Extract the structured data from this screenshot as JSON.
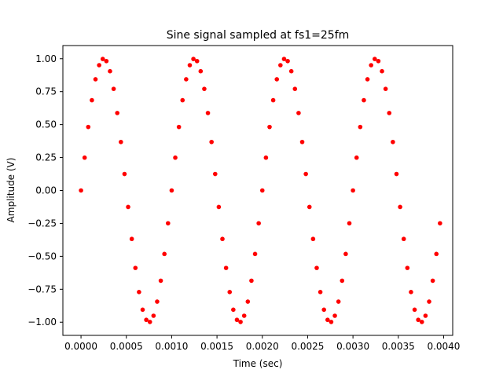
{
  "chart_data": {
    "type": "scatter",
    "title": "Sine signal sampled at fs1=25fm",
    "xlabel": "Time (sec)",
    "ylabel": "Amplitude (V)",
    "xlim": [
      -0.0002,
      0.0041
    ],
    "ylim": [
      -1.1,
      1.1
    ],
    "xticks": [
      0,
      0.0005,
      0.001,
      0.0015,
      0.002,
      0.0025,
      0.003,
      0.0035,
      0.004
    ],
    "xtick_labels": [
      "0.0000",
      "0.0005",
      "0.0010",
      "0.0015",
      "0.0020",
      "0.0025",
      "0.0030",
      "0.0035",
      "0.0040"
    ],
    "yticks": [
      -1,
      -0.75,
      -0.5,
      -0.25,
      0,
      0.25,
      0.5,
      0.75,
      1
    ],
    "ytick_labels": [
      "−1.00",
      "−0.75",
      "−0.50",
      "−0.25",
      "0.00",
      "0.25",
      "0.50",
      "0.75",
      "1.00"
    ],
    "grid": false,
    "marker_color": "#ff0000",
    "series": [
      {
        "x": [
          0,
          4e-05,
          8e-05,
          0.00012,
          0.00016,
          0.0002,
          0.00024,
          0.00028,
          0.00032,
          0.00036,
          0.0004,
          0.00044,
          0.00048,
          0.00052,
          0.00056,
          0.0006,
          0.00064,
          0.00068,
          0.00072,
          0.00076,
          0.0008,
          0.00084,
          0.00088,
          0.00092,
          0.00096,
          0.001,
          0.00104,
          0.00108,
          0.00112,
          0.00116,
          0.0012,
          0.00124,
          0.00128,
          0.00132,
          0.00136,
          0.0014,
          0.00144,
          0.00148,
          0.00152,
          0.00156,
          0.0016,
          0.00164,
          0.00168,
          0.00172,
          0.00176,
          0.0018,
          0.00184,
          0.00188,
          0.00192,
          0.00196,
          0.002,
          0.00204,
          0.00208,
          0.00212,
          0.00216,
          0.0022,
          0.00224,
          0.00228,
          0.00232,
          0.00236,
          0.0024,
          0.00244,
          0.00248,
          0.00252,
          0.00256,
          0.0026,
          0.00264,
          0.00268,
          0.00272,
          0.00276,
          0.0028,
          0.00284,
          0.00288,
          0.00292,
          0.00296,
          0.003,
          0.00304,
          0.00308,
          0.00312,
          0.00316,
          0.0032,
          0.00324,
          0.00328,
          0.00332,
          0.00336,
          0.0034,
          0.00344,
          0.00348,
          0.00352,
          0.00356,
          0.0036,
          0.00364,
          0.00368,
          0.00372,
          0.00376,
          0.0038,
          0.00384,
          0.00388,
          0.00392,
          0.00396
        ],
        "y": [
          0,
          0.249,
          0.482,
          0.685,
          0.844,
          0.951,
          0.998,
          0.982,
          0.905,
          0.771,
          0.588,
          0.368,
          0.125,
          -0.125,
          -0.368,
          -0.588,
          -0.771,
          -0.905,
          -0.982,
          -0.998,
          -0.951,
          -0.844,
          -0.685,
          -0.482,
          -0.249,
          0,
          0.249,
          0.482,
          0.685,
          0.844,
          0.951,
          0.998,
          0.982,
          0.905,
          0.771,
          0.588,
          0.368,
          0.125,
          -0.125,
          -0.368,
          -0.588,
          -0.771,
          -0.905,
          -0.982,
          -0.998,
          -0.951,
          -0.844,
          -0.685,
          -0.482,
          -0.249,
          0,
          0.249,
          0.482,
          0.685,
          0.844,
          0.951,
          0.998,
          0.982,
          0.905,
          0.771,
          0.588,
          0.368,
          0.125,
          -0.125,
          -0.368,
          -0.588,
          -0.771,
          -0.905,
          -0.982,
          -0.998,
          -0.951,
          -0.844,
          -0.685,
          -0.482,
          -0.249,
          0,
          0.249,
          0.482,
          0.685,
          0.844,
          0.951,
          0.998,
          0.982,
          0.905,
          0.771,
          0.588,
          0.368,
          0.125,
          -0.125,
          -0.368,
          -0.588,
          -0.771,
          -0.905,
          -0.982,
          -0.998,
          -0.951,
          -0.844,
          -0.685,
          -0.482,
          -0.249
        ]
      }
    ]
  }
}
